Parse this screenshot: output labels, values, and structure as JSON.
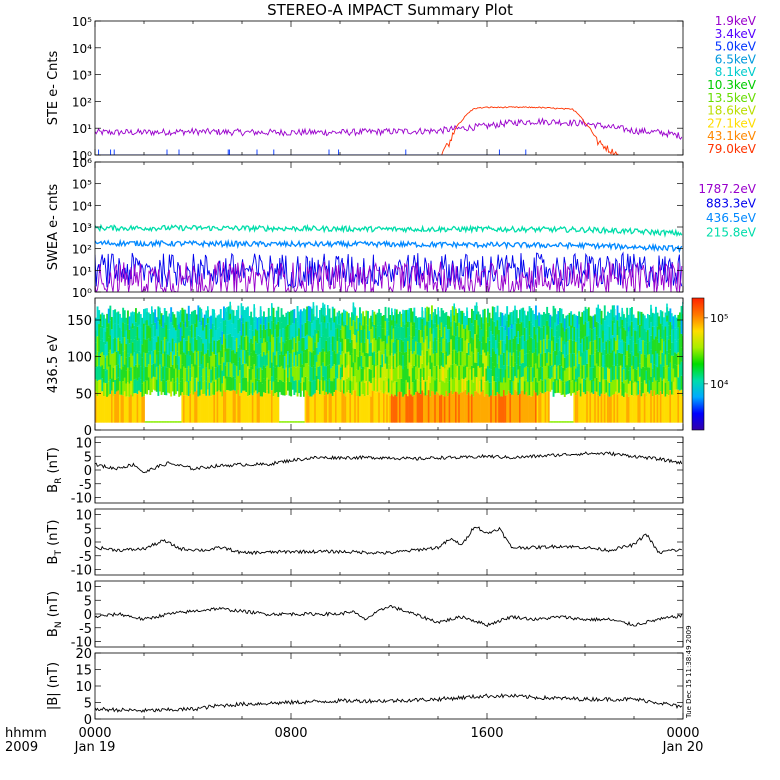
{
  "title": "STEREO-A IMPACT Summary Plot",
  "x_axis": {
    "corner_labels": [
      "hhmm",
      "2009"
    ],
    "ticks": [
      {
        "hhmm": "0000",
        "date": "Jan 19",
        "hour": 0
      },
      {
        "hhmm": "0800",
        "date": "",
        "hour": 8
      },
      {
        "hhmm": "1600",
        "date": "",
        "hour": 16
      },
      {
        "hhmm": "0000",
        "date": "Jan 20",
        "hour": 24
      }
    ],
    "range_hours": [
      0,
      24
    ]
  },
  "timestamp": "Tue Dec 15 11:38:49 2009",
  "colors": {
    "ste_channels": [
      "#9900cc",
      "#5500ff",
      "#0033ff",
      "#0099dd",
      "#00cccc",
      "#00cc00",
      "#66dd00",
      "#bbdd00",
      "#ffdd00",
      "#ff8800",
      "#ff3300"
    ],
    "swea_channels": [
      "#9900cc",
      "#0000ee",
      "#0088ff",
      "#00ddaa"
    ],
    "mag": "#000000"
  },
  "chart_data": [
    {
      "id": "ste",
      "type": "line",
      "ylabel": "STE e- Cnts",
      "yscale": "log",
      "ylim": [
        1,
        100000
      ],
      "ytick_labels": [
        "10⁰",
        "10¹",
        "10²",
        "10³",
        "10⁴",
        "10⁵"
      ],
      "legend": [
        "1.9keV",
        "3.4keV",
        "5.0keV",
        "6.5keV",
        "8.1keV",
        "10.3keV",
        "13.5keV",
        "18.6keV",
        "27.1keV",
        "43.1keV",
        "79.0keV"
      ],
      "series": [
        {
          "name": "1.9keV",
          "x": [
            0,
            2,
            4,
            6,
            8,
            10,
            12,
            14,
            16,
            17,
            18,
            19,
            20,
            21,
            22,
            23,
            24
          ],
          "values": [
            7,
            7,
            7.5,
            7,
            7,
            7,
            7.5,
            8,
            12,
            16,
            18,
            17,
            15,
            11,
            8,
            7,
            5
          ]
        },
        {
          "name": "79.0keV",
          "x": [
            14.1,
            14.5,
            15.0,
            15.5,
            16,
            18,
            19.5,
            20.0,
            20.5,
            21.0,
            21.4
          ],
          "values": [
            1,
            3,
            20,
            55,
            60,
            60,
            50,
            15,
            3,
            1.5,
            1
          ]
        },
        {
          "name": "5.0keV",
          "x": [
            0,
            24
          ],
          "values": [
            1,
            1
          ]
        }
      ]
    },
    {
      "id": "swea",
      "type": "line",
      "ylabel": "SWEA e- cnts",
      "yscale": "log",
      "ylim": [
        1,
        1000000
      ],
      "ytick_labels": [
        "10⁰",
        "10¹",
        "10²",
        "10³",
        "10⁴",
        "10⁵",
        "10⁶"
      ],
      "legend": [
        "1787.2eV",
        "883.3eV",
        "436.5eV",
        "215.8eV"
      ],
      "series": [
        {
          "name": "215.8eV",
          "x": [
            0,
            4,
            8,
            12,
            16,
            20,
            24
          ],
          "values": [
            900,
            900,
            850,
            800,
            800,
            750,
            500
          ]
        },
        {
          "name": "436.5eV",
          "x": [
            0,
            4,
            8,
            12,
            16,
            20,
            24
          ],
          "values": [
            180,
            170,
            160,
            160,
            150,
            140,
            100
          ]
        },
        {
          "name": "883.3eV",
          "x": [
            0,
            24
          ],
          "values": [
            10,
            10
          ]
        },
        {
          "name": "1787.2eV",
          "x": [
            0,
            24
          ],
          "values": [
            4,
            4
          ]
        }
      ]
    },
    {
      "id": "spectro",
      "type": "heatmap",
      "ylabel": "436.5 eV",
      "ylim": [
        0,
        180
      ],
      "ytick_labels": [
        "0",
        "50",
        "100",
        "150"
      ],
      "colorbar": {
        "scale": "log",
        "tick_labels": [
          "10⁴",
          "10⁵"
        ],
        "range": [
          2000,
          200000
        ]
      },
      "upper_edge": 170,
      "low_band_top": 45
    },
    {
      "id": "br",
      "type": "line",
      "ylabel": "BR (nT)",
      "ylabel_main": "B",
      "ylabel_sub": "R",
      "ylabel_unit": " (nT)",
      "ylim": [
        -12,
        12
      ],
      "ytick_labels": [
        "-10",
        "-5",
        "0",
        "5",
        "10"
      ],
      "series": [
        {
          "name": "",
          "x": [
            0,
            0.8,
            1.6,
            2,
            2.5,
            3,
            4,
            5,
            6,
            7,
            8,
            9,
            10,
            11,
            12,
            13,
            14,
            15,
            16,
            17,
            18,
            19,
            20,
            21,
            22,
            23,
            24
          ],
          "values": [
            2,
            0.5,
            2,
            -1,
            1,
            2.5,
            0.5,
            1.5,
            2,
            2,
            3.5,
            4.5,
            4.5,
            4.5,
            4.5,
            4,
            4.5,
            4.5,
            5,
            4.5,
            5,
            5.5,
            6,
            6,
            5,
            4,
            2.5
          ]
        }
      ]
    },
    {
      "id": "bt",
      "type": "line",
      "ylabel": "BT (nT)",
      "ylabel_main": "B",
      "ylabel_sub": "T",
      "ylabel_unit": " (nT)",
      "ylim": [
        -12,
        12
      ],
      "ytick_labels": [
        "-10",
        "-5",
        "0",
        "5",
        "10"
      ],
      "series": [
        {
          "name": "",
          "x": [
            0,
            1,
            2,
            2.8,
            3.5,
            4.5,
            5.2,
            6,
            8,
            10,
            12,
            14,
            14.5,
            15,
            15.5,
            16,
            16.5,
            17,
            18,
            19,
            20,
            21,
            22,
            22.5,
            23,
            23.5,
            24
          ],
          "values": [
            -2,
            -3,
            -2.5,
            0.5,
            -2.5,
            -3,
            -2,
            -4,
            -3.5,
            -3.5,
            -4,
            -2,
            1,
            -1,
            6,
            3,
            5,
            -2,
            -2,
            -1.5,
            -2,
            -3,
            -1,
            3,
            -4,
            -3,
            -3
          ]
        }
      ]
    },
    {
      "id": "bn",
      "type": "line",
      "ylabel": "BN (nT)",
      "ylabel_main": "B",
      "ylabel_sub": "N",
      "ylabel_unit": " (nT)",
      "ylim": [
        -12,
        12
      ],
      "ytick_labels": [
        "-10",
        "-5",
        "0",
        "5",
        "10"
      ],
      "series": [
        {
          "name": "",
          "x": [
            0,
            1,
            2,
            3,
            4,
            5,
            6,
            7,
            8,
            9,
            10,
            10.5,
            11,
            12,
            13,
            14,
            14.5,
            15,
            16,
            17,
            18,
            19,
            20,
            21,
            22,
            23,
            24
          ],
          "values": [
            -1,
            0,
            -2,
            0,
            1,
            2,
            1,
            0,
            0,
            0,
            0,
            1,
            -2,
            3,
            0,
            -3,
            -2,
            -1,
            -4,
            -1,
            -2,
            -1,
            -2,
            -2,
            -4,
            -2,
            -0.5
          ]
        }
      ]
    },
    {
      "id": "bmag",
      "type": "line",
      "ylabel": "|B| (nT)",
      "ylim": [
        0,
        20
      ],
      "ytick_labels": [
        "0",
        "5",
        "10",
        "15",
        "20"
      ],
      "series": [
        {
          "name": "",
          "x": [
            0,
            2,
            4,
            5,
            6,
            8,
            10,
            12,
            14,
            15,
            16,
            17,
            18,
            20,
            22,
            23,
            24
          ],
          "values": [
            3,
            2.5,
            3,
            4,
            4.5,
            5,
            5.5,
            5.5,
            6,
            6.5,
            7,
            7,
            6.5,
            6,
            6,
            5,
            3.5
          ]
        }
      ]
    }
  ]
}
